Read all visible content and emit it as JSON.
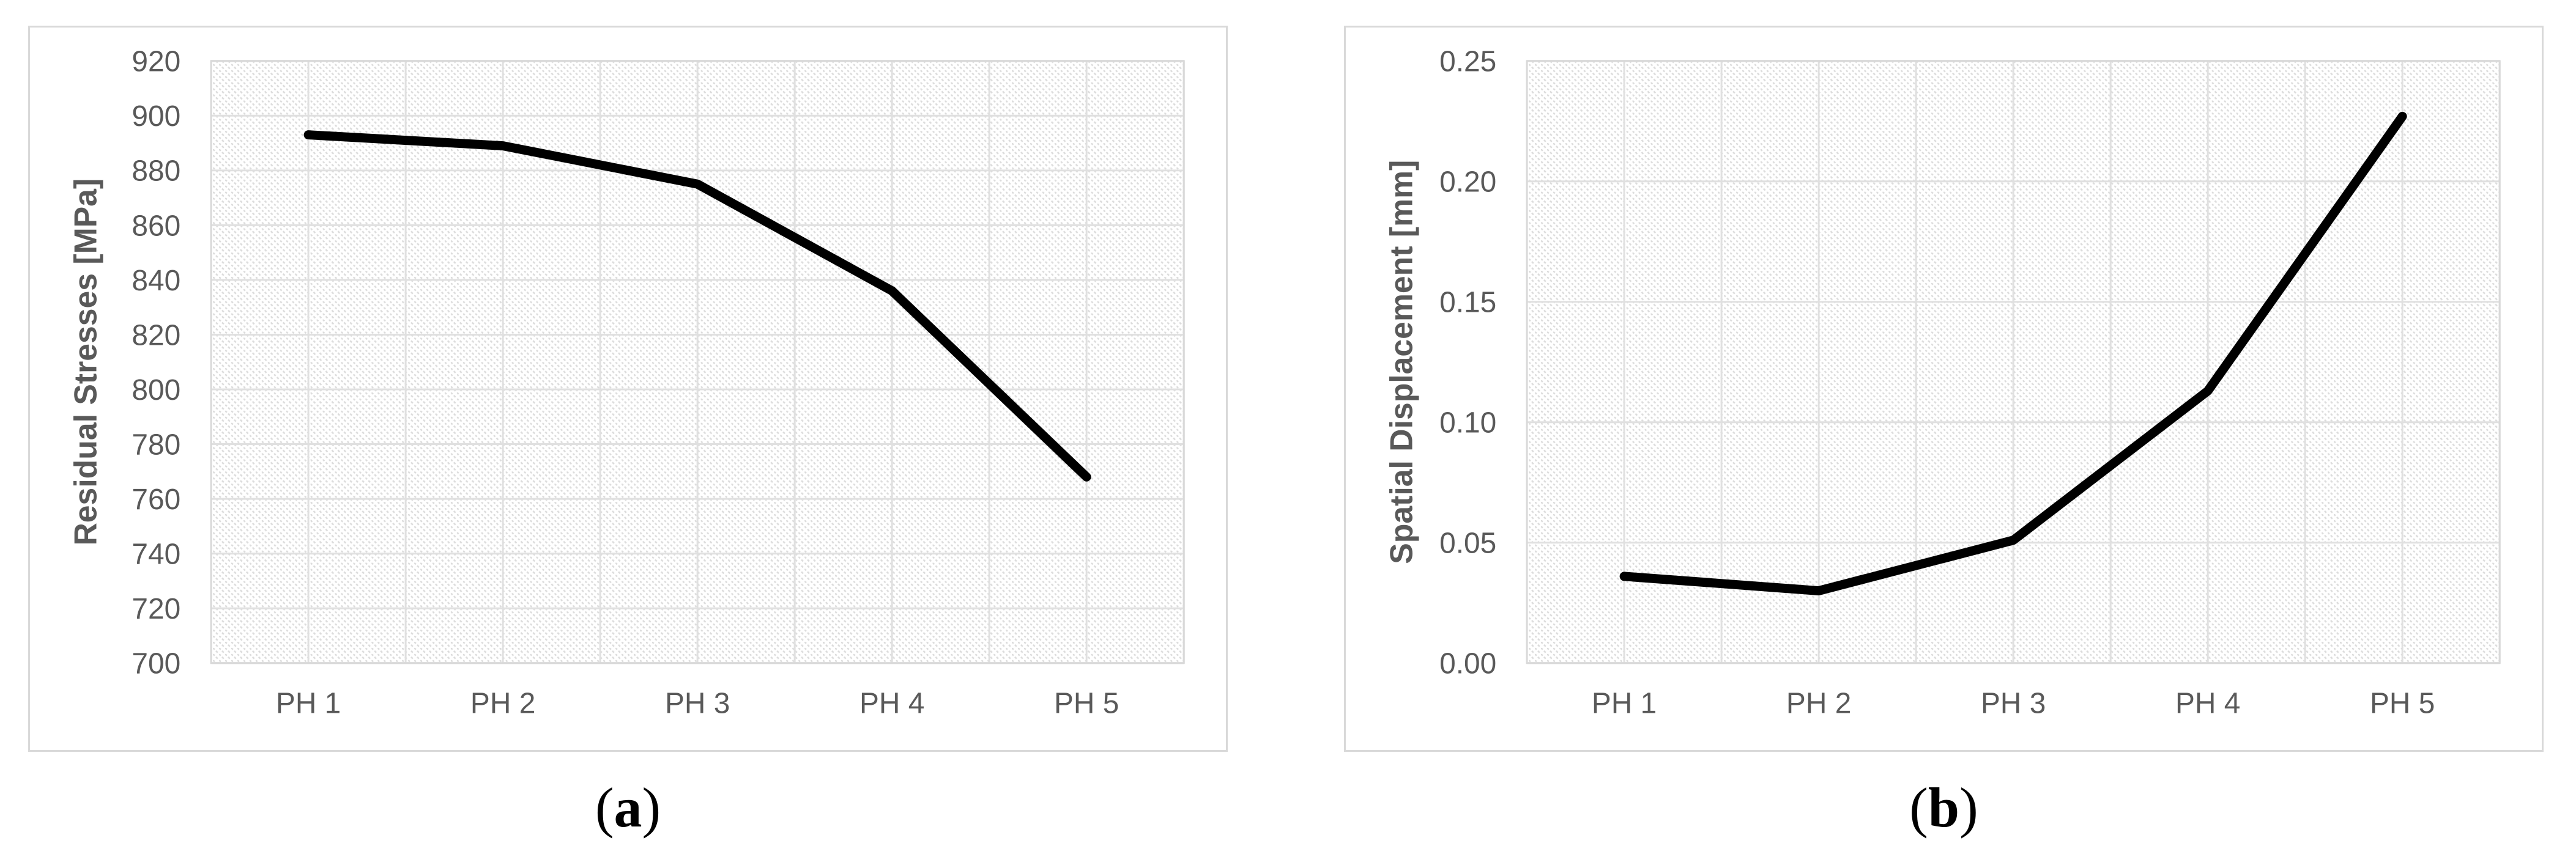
{
  "figure": {
    "background": "#ffffff",
    "panel_count": 2
  },
  "colors": {
    "line": "#000000",
    "grid": "#e0e0e0",
    "hatch": "#dcdcdc",
    "plot_border": "#d9d9d9",
    "panel_border": "#d9d9d9",
    "tick_text": "#595959",
    "axis_title_text": "#595959",
    "caption_text": "#000000"
  },
  "chart_data": [
    {
      "id": "a",
      "type": "line",
      "title": "",
      "xlabel": "",
      "ylabel": "Residual Stresses [MPa]",
      "categories": [
        "PH 1",
        "PH 2",
        "PH 3",
        "PH 4",
        "PH 5"
      ],
      "series": [
        {
          "name": "Residual Stresses",
          "values": [
            893,
            889,
            875,
            836,
            768
          ]
        }
      ],
      "ylim": [
        700,
        920
      ],
      "ytick_step": 20,
      "ytick_labels": [
        "920",
        "900",
        "880",
        "860",
        "840",
        "820",
        "800",
        "780",
        "760",
        "740",
        "720",
        "700"
      ],
      "grid": "major horizontal + vertical, light gray, hatched plot background",
      "legend": "none",
      "caption": {
        "open": "(",
        "letter": "a",
        "close": ")"
      }
    },
    {
      "id": "b",
      "type": "line",
      "title": "",
      "xlabel": "",
      "ylabel": "Spatial Displacement [mm]",
      "categories": [
        "PH 1",
        "PH 2",
        "PH 3",
        "PH 4",
        "PH 5"
      ],
      "series": [
        {
          "name": "Spatial Displacement",
          "values": [
            0.036,
            0.03,
            0.051,
            0.113,
            0.227
          ]
        }
      ],
      "ylim": [
        0,
        0.25
      ],
      "ytick_step": 0.05,
      "ytick_labels": [
        "0.25",
        "0.20",
        "0.15",
        "0.10",
        "0.05",
        "0.00"
      ],
      "grid": "major horizontal + vertical, light gray, hatched plot background",
      "legend": "none",
      "caption": {
        "open": "(",
        "letter": "b",
        "close": ")"
      }
    }
  ]
}
